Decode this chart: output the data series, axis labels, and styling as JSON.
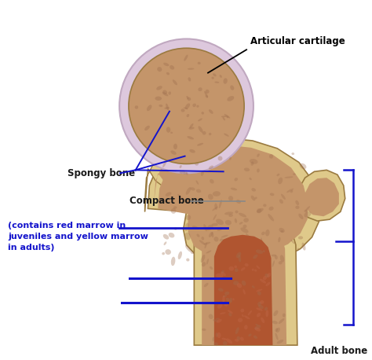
{
  "background_color": "#ffffff",
  "labels": {
    "articular_cartilage": "Articular cartilage",
    "spongy_bone": "Spongy bone",
    "compact_bone": "Compact bone",
    "marrow_note": "(contains red marrow in\njuveniles and yellow marrow\nin adults)",
    "adult_bone": "Adult bone"
  },
  "label_colors": {
    "articular_cartilage": "#000000",
    "spongy_bone": "#1a1a1a",
    "compact_bone": "#1a1a1a",
    "marrow_note": "#1414cc",
    "adult_bone": "#1a1a1a"
  },
  "blue": "#1414cc",
  "black": "#000000",
  "gray": "#888888",
  "bone_outer": "#dfc98a",
  "bone_spongy": "#c4956a",
  "bone_marrow": "#b05530",
  "cartilage": "#ddc8dd",
  "figsize": [
    4.74,
    4.58
  ],
  "dpi": 100
}
